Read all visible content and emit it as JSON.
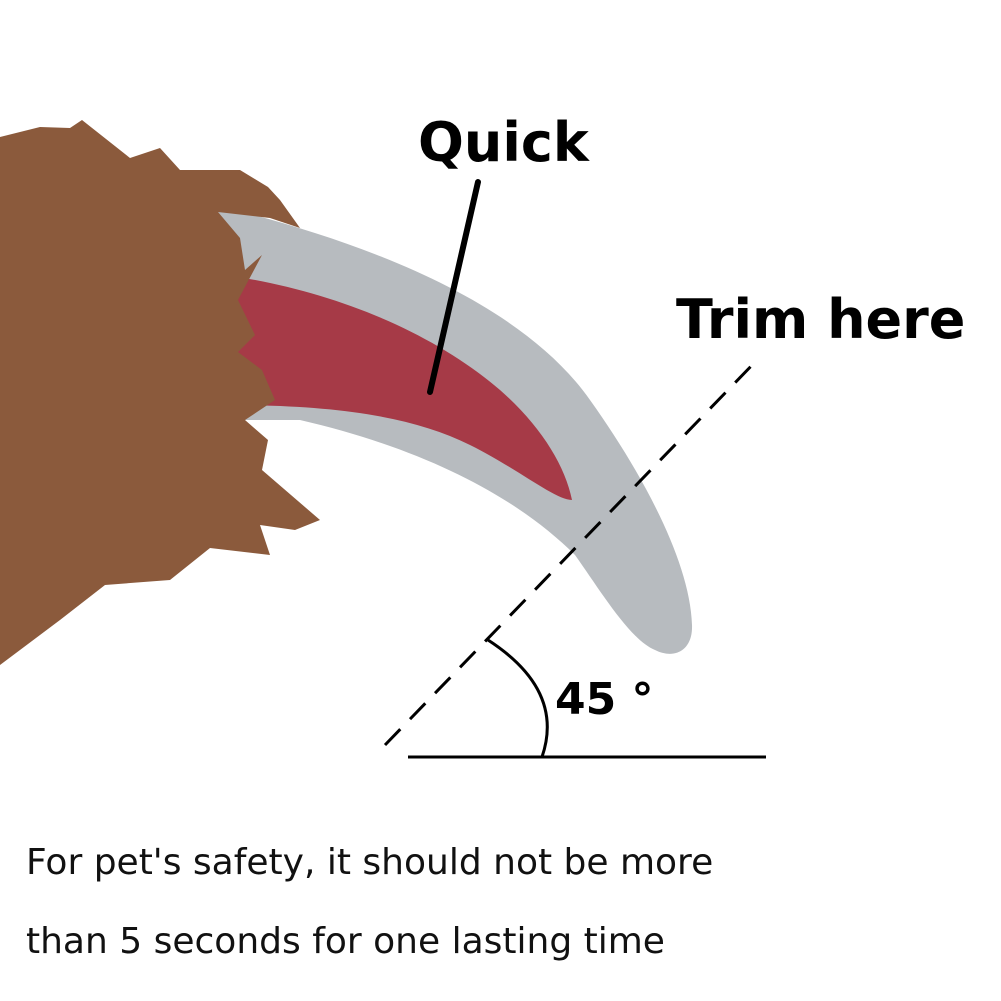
{
  "labels": {
    "quick": "Quick",
    "trim_here": "Trim here",
    "angle": "45 °"
  },
  "caption": {
    "line1": "For pet's safety, it should not be more",
    "line2": "than 5 seconds for one lasting time"
  },
  "colors": {
    "fur": "#8B5A3C",
    "claw": "#B7BBBF",
    "quick": "#A63A47",
    "ink": "#000000",
    "background": "#FFFFFF"
  }
}
